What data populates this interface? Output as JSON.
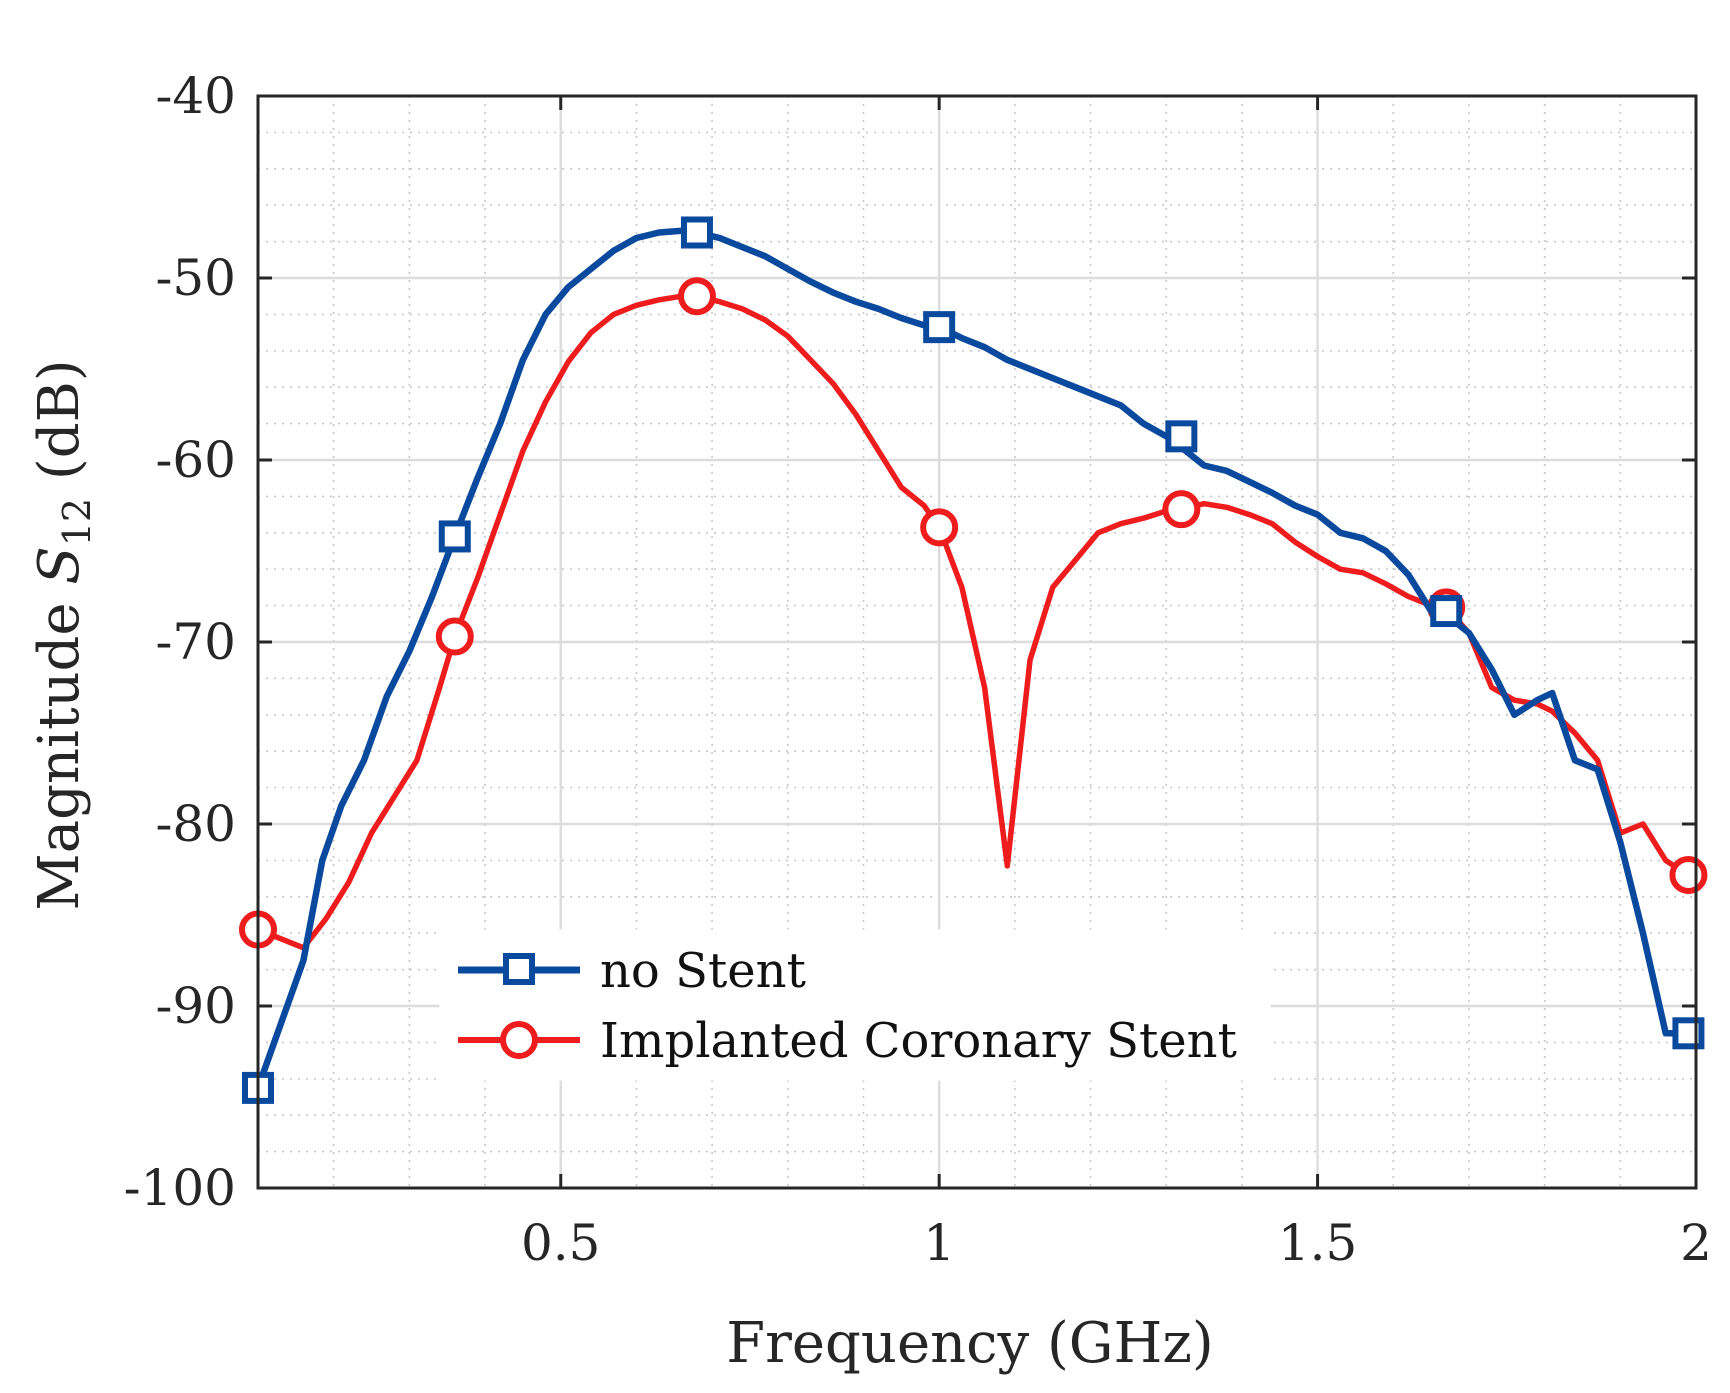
{
  "chart_data": {
    "type": "line",
    "title": "",
    "xlabel": "Frequency (GHz)",
    "ylabel_prefix": "Magnitude ",
    "ylabel_symbol": "S",
    "ylabel_subscript": "12",
    "ylabel_suffix": " (dB)",
    "xlim": [
      0.1,
      2.0
    ],
    "ylim": [
      -100,
      -40
    ],
    "xticks": [
      0.5,
      1,
      1.5,
      2
    ],
    "xtick_labels": [
      "0.5",
      "1",
      "1.5",
      "2"
    ],
    "yticks": [
      -100,
      -90,
      -80,
      -70,
      -60,
      -50,
      -40
    ],
    "ytick_labels": [
      "-100",
      "-90",
      "-80",
      "-70",
      "-60",
      "-50",
      "-40"
    ],
    "grid": true,
    "minor_grid": true,
    "legend_location": "lower-center",
    "series": [
      {
        "name": "no Stent",
        "color": "#0a4a9e",
        "marker": "square",
        "x": [
          0.1,
          0.13,
          0.16,
          0.185,
          0.21,
          0.24,
          0.27,
          0.3,
          0.33,
          0.36,
          0.39,
          0.42,
          0.45,
          0.48,
          0.51,
          0.54,
          0.57,
          0.6,
          0.63,
          0.66,
          0.68,
          0.71,
          0.74,
          0.77,
          0.8,
          0.83,
          0.86,
          0.89,
          0.92,
          0.95,
          0.98,
          1.0,
          1.03,
          1.06,
          1.09,
          1.12,
          1.15,
          1.18,
          1.21,
          1.24,
          1.27,
          1.3,
          1.32,
          1.35,
          1.38,
          1.41,
          1.44,
          1.47,
          1.5,
          1.53,
          1.56,
          1.59,
          1.62,
          1.65,
          1.67,
          1.7,
          1.73,
          1.76,
          1.79,
          1.81,
          1.84,
          1.87,
          1.9,
          1.93,
          1.96,
          1.99
        ],
        "y": [
          -94.5,
          -91.0,
          -87.5,
          -82.0,
          -79.0,
          -76.5,
          -73.0,
          -70.5,
          -67.5,
          -64.2,
          -61.0,
          -58.0,
          -54.5,
          -52.0,
          -50.5,
          -49.5,
          -48.5,
          -47.8,
          -47.5,
          -47.4,
          -47.5,
          -47.8,
          -48.3,
          -48.8,
          -49.5,
          -50.2,
          -50.8,
          -51.3,
          -51.7,
          -52.2,
          -52.6,
          -52.7,
          -53.3,
          -53.8,
          -54.5,
          -55.0,
          -55.5,
          -56.0,
          -56.5,
          -57.0,
          -58.0,
          -58.7,
          -59.3,
          -60.3,
          -60.6,
          -61.2,
          -61.8,
          -62.5,
          -63.0,
          -64.0,
          -64.3,
          -65.0,
          -66.3,
          -68.3,
          -68.5,
          -69.5,
          -71.5,
          -74.0,
          -73.2,
          -72.8,
          -76.5,
          -77.0,
          -81.0,
          -86.0,
          -91.5,
          -91.5
        ],
        "markers_x": [
          0.1,
          0.36,
          0.68,
          1.0,
          1.32,
          1.67,
          1.99
        ],
        "markers_y": [
          -94.5,
          -64.2,
          -47.5,
          -52.7,
          -58.7,
          -68.3,
          -91.5
        ]
      },
      {
        "name": "Implanted Coronary Stent",
        "color": "#ee1c1c",
        "marker": "circle",
        "x": [
          0.1,
          0.13,
          0.16,
          0.19,
          0.22,
          0.25,
          0.28,
          0.31,
          0.34,
          0.36,
          0.39,
          0.42,
          0.45,
          0.48,
          0.51,
          0.54,
          0.57,
          0.6,
          0.63,
          0.66,
          0.68,
          0.71,
          0.74,
          0.77,
          0.8,
          0.83,
          0.86,
          0.89,
          0.92,
          0.95,
          0.98,
          1.0,
          1.03,
          1.06,
          1.09,
          1.12,
          1.15,
          1.18,
          1.21,
          1.24,
          1.27,
          1.3,
          1.32,
          1.35,
          1.38,
          1.41,
          1.44,
          1.47,
          1.5,
          1.53,
          1.56,
          1.59,
          1.62,
          1.65,
          1.67,
          1.7,
          1.73,
          1.76,
          1.79,
          1.81,
          1.84,
          1.87,
          1.9,
          1.93,
          1.96,
          1.99
        ],
        "y": [
          -85.8,
          -86.3,
          -86.8,
          -85.2,
          -83.2,
          -80.5,
          -78.5,
          -76.5,
          -72.5,
          -69.7,
          -66.5,
          -63.0,
          -59.5,
          -56.8,
          -54.6,
          -53.0,
          -52.0,
          -51.5,
          -51.2,
          -51.0,
          -51.0,
          -51.3,
          -51.7,
          -52.3,
          -53.2,
          -54.5,
          -55.8,
          -57.5,
          -59.5,
          -61.5,
          -62.5,
          -63.7,
          -67.0,
          -72.5,
          -82.3,
          -71.0,
          -67.0,
          -65.5,
          -64.0,
          -63.5,
          -63.2,
          -62.8,
          -62.7,
          -62.4,
          -62.6,
          -63.0,
          -63.5,
          -64.5,
          -65.3,
          -66.0,
          -66.2,
          -66.8,
          -67.5,
          -68.0,
          -68.1,
          -69.5,
          -72.5,
          -73.2,
          -73.4,
          -73.8,
          -75.0,
          -76.5,
          -80.5,
          -80.0,
          -82.0,
          -82.8
        ],
        "markers_x": [
          0.1,
          0.36,
          0.68,
          1.0,
          1.32,
          1.67,
          1.99
        ],
        "markers_y": [
          -85.8,
          -69.7,
          -51.0,
          -63.7,
          -62.7,
          -68.1,
          -82.8
        ]
      }
    ]
  }
}
